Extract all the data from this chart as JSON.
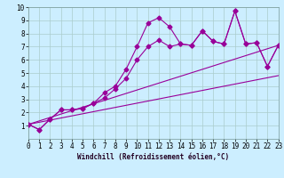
{
  "xlabel": "Windchill (Refroidissement éolien,°C)",
  "bg_color": "#cceeff",
  "line_color": "#990099",
  "grid_color": "#aacccc",
  "xlim": [
    0,
    23
  ],
  "ylim": [
    0,
    10
  ],
  "xticks": [
    0,
    1,
    2,
    3,
    4,
    5,
    6,
    7,
    8,
    9,
    10,
    11,
    12,
    13,
    14,
    15,
    16,
    17,
    18,
    19,
    20,
    21,
    22,
    23
  ],
  "yticks": [
    1,
    2,
    3,
    4,
    5,
    6,
    7,
    8,
    9,
    10
  ],
  "line1_x": [
    0,
    1,
    2,
    3,
    4,
    5,
    6,
    7,
    8,
    9,
    10,
    11,
    12,
    13,
    14,
    15,
    16,
    17,
    18,
    19,
    20,
    21,
    22,
    23
  ],
  "line1_y": [
    1.1,
    0.7,
    1.5,
    2.2,
    2.2,
    2.3,
    2.7,
    3.5,
    4.0,
    5.3,
    7.0,
    8.8,
    9.2,
    8.5,
    7.2,
    7.1,
    8.2,
    7.4,
    7.2,
    9.7,
    7.2,
    7.3,
    5.5,
    7.1
  ],
  "line2_x": [
    0,
    1,
    2,
    3,
    4,
    5,
    6,
    7,
    8,
    9,
    10,
    11,
    12,
    13,
    14,
    15,
    16,
    17,
    18,
    19,
    20,
    21,
    22,
    23
  ],
  "line2_y": [
    1.1,
    0.7,
    1.5,
    2.2,
    2.2,
    2.3,
    2.7,
    3.1,
    3.8,
    4.6,
    6.0,
    7.0,
    7.5,
    7.0,
    7.2,
    7.1,
    8.2,
    7.4,
    7.2,
    9.7,
    7.2,
    7.3,
    5.5,
    7.1
  ],
  "line3_x": [
    0,
    23
  ],
  "line3_y": [
    1.1,
    4.8
  ],
  "line4_x": [
    0,
    23
  ],
  "line4_y": [
    1.1,
    7.1
  ],
  "tick_fontsize": 5.5,
  "xlabel_fontsize": 5.5,
  "marker_size": 2.5
}
